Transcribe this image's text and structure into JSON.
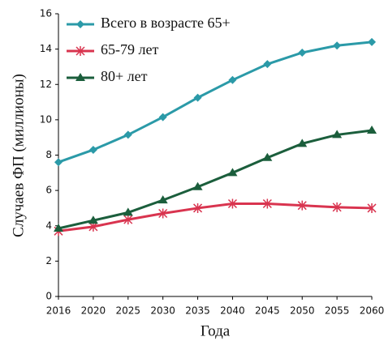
{
  "chart_data": {
    "type": "line",
    "x_label": "Года",
    "y_label": "Случаев ФП (миллионы)",
    "categories": [
      "2016",
      "2020",
      "2025",
      "2030",
      "2035",
      "2040",
      "2045",
      "2050",
      "2055",
      "2060"
    ],
    "series": [
      {
        "name": "Всего в возрасте 65+",
        "color": "#2b9aa8",
        "marker": "diamond",
        "values": [
          7.6,
          8.3,
          9.15,
          10.15,
          11.25,
          12.25,
          13.15,
          13.8,
          14.2,
          14.4
        ]
      },
      {
        "name": "65-79 лет",
        "color": "#d9344f",
        "marker": "star",
        "values": [
          3.7,
          3.95,
          4.35,
          4.7,
          5.0,
          5.25,
          5.25,
          5.15,
          5.05,
          5.0
        ]
      },
      {
        "name": "80+ лет",
        "color": "#1b5e3c",
        "marker": "triangle",
        "values": [
          3.85,
          4.3,
          4.75,
          5.45,
          6.2,
          7.0,
          7.85,
          8.65,
          9.15,
          9.4
        ]
      }
    ],
    "ylim": [
      0,
      16
    ],
    "yticks": [
      0,
      2,
      4,
      6,
      8,
      10,
      12,
      14,
      16
    ],
    "grid": false,
    "legend": "upper left"
  }
}
